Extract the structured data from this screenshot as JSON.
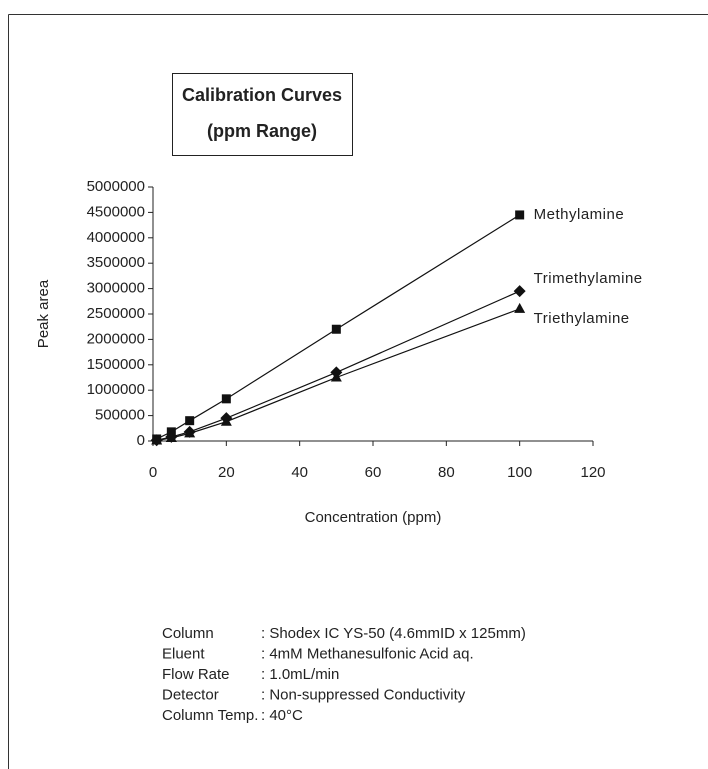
{
  "chart_data": {
    "type": "line",
    "title": "Calibration Curves",
    "subtitle": "(ppm Range)",
    "x_label": "Concentration (ppm)",
    "y_label": "Peak area",
    "x": [
      1,
      5,
      10,
      20,
      50,
      100
    ],
    "series": [
      {
        "name": "Methylamine",
        "color": "#111111",
        "marker": "square",
        "values": [
          40000,
          180000,
          400000,
          830000,
          2200000,
          4450000
        ]
      },
      {
        "name": "Trimethylamine",
        "color": "#111111",
        "marker": "diamond",
        "values": [
          15000,
          80000,
          180000,
          450000,
          1350000,
          2950000
        ]
      },
      {
        "name": "Triethylamine",
        "color": "#111111",
        "marker": "triangle",
        "values": [
          10000,
          60000,
          150000,
          380000,
          1250000,
          2600000
        ]
      }
    ],
    "xlim": [
      0,
      120
    ],
    "xticks": [
      0,
      20,
      40,
      60,
      80,
      100,
      120
    ],
    "ylim": [
      0,
      5000000
    ],
    "yticks": [
      0,
      500000,
      1000000,
      1500000,
      2000000,
      2500000,
      3000000,
      3500000,
      4000000,
      4500000,
      5000000
    ]
  },
  "conditions": [
    {
      "label": "Column",
      "value": ": Shodex IC YS-50 (4.6mmID x 125mm)"
    },
    {
      "label": "Eluent",
      "value": ": 4mM Methanesulfonic Acid aq."
    },
    {
      "label": "Flow Rate",
      "value": ": 1.0mL/min"
    },
    {
      "label": "Detector",
      "value": ": Non-suppressed Conductivity"
    },
    {
      "label": "Column Temp.",
      "value": ": 40°C"
    }
  ]
}
